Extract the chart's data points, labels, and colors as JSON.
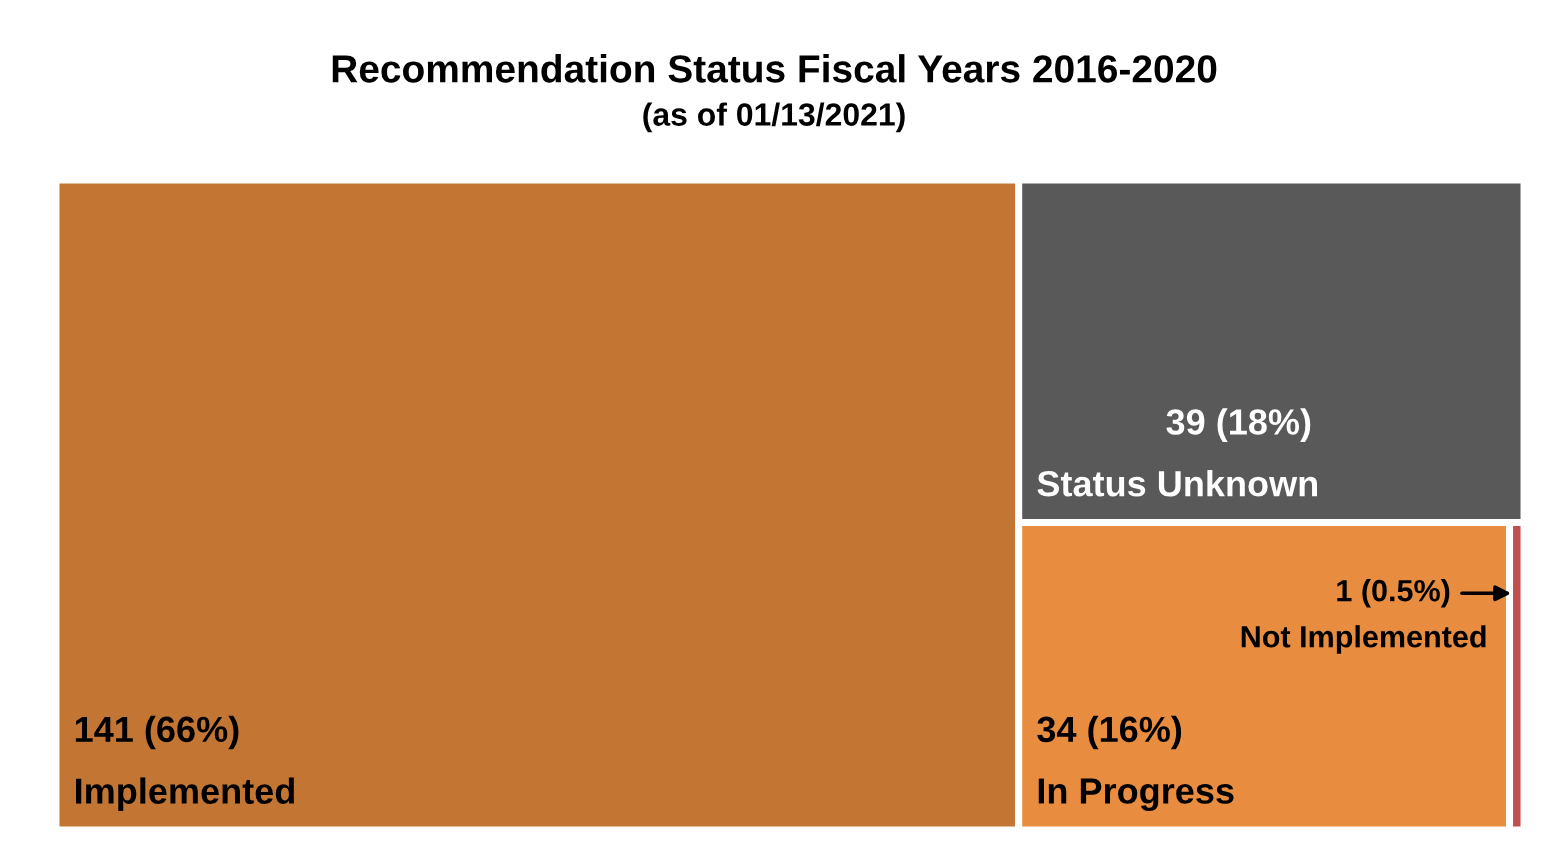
{
  "chart_data": {
    "type": "other",
    "title": "Recommendation Status Fiscal Years 2016-2020",
    "subtitle": "(as of 01/13/2021)",
    "categories": [
      "Implemented",
      "Status Unknown",
      "In Progress",
      "Not Implemented"
    ],
    "values": [
      141,
      39,
      34,
      1
    ],
    "value_labels": [
      "141 (66%)",
      "39 (18%)",
      "34 (16%)",
      "1 (0.5%)"
    ],
    "colors": [
      "#c37634",
      "#595959",
      "#e88c40",
      "#c0504d"
    ]
  }
}
